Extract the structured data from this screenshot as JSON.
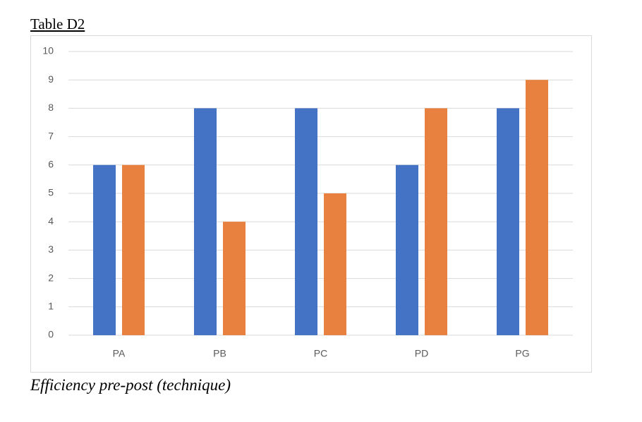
{
  "heading": "Table D2",
  "caption": "Efficiency pre-post (technique)",
  "chart_data": {
    "type": "bar",
    "categories": [
      "PA",
      "PB",
      "PC",
      "PD",
      "PG"
    ],
    "series": [
      {
        "color": "#4472c4",
        "values": [
          6,
          8,
          8,
          6,
          8
        ]
      },
      {
        "color": "#e8803f",
        "values": [
          6,
          4,
          5,
          8,
          9
        ]
      }
    ],
    "ylim": [
      0,
      10
    ],
    "yticks": [
      0,
      1,
      2,
      3,
      4,
      5,
      6,
      7,
      8,
      9,
      10
    ],
    "grid": true
  }
}
